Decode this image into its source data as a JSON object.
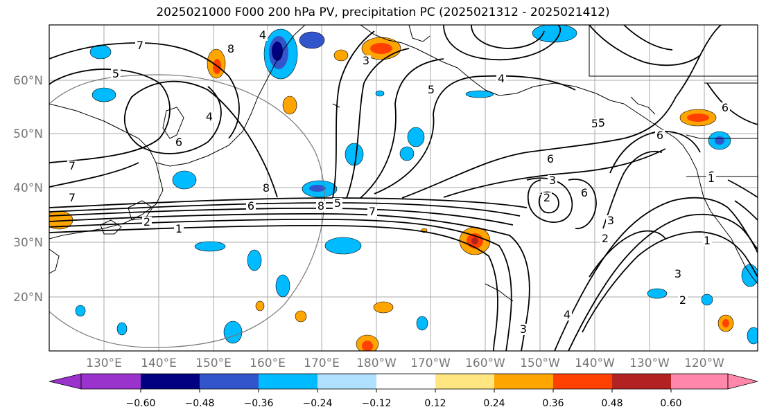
{
  "title": "2025021000 F000 200 hPa PV, precipitation PC (2025021312 - 2025021412)",
  "map": {
    "lat_ticks": [
      "60°N",
      "50°N",
      "40°N",
      "30°N",
      "20°N"
    ],
    "lon_ticks": [
      "130°E",
      "140°E",
      "150°E",
      "160°E",
      "170°E",
      "180°W",
      "170°W",
      "160°W",
      "150°W",
      "140°W",
      "130°W",
      "120°W"
    ],
    "contour_labels": [
      "7",
      "5",
      "4",
      "6",
      "7",
      "7",
      "8",
      "6",
      "2",
      "1",
      "8",
      "4",
      "5",
      "3",
      "4",
      "6",
      "5",
      "6",
      "8",
      "3",
      "2",
      "6",
      "3",
      "2",
      "3",
      "1",
      "2",
      "4",
      "3",
      "6",
      "5",
      "7",
      "8",
      "6",
      "5",
      "1"
    ]
  },
  "colorbar": {
    "tick_labels": [
      "−0.60",
      "−0.48",
      "−0.36",
      "−0.24",
      "−0.12",
      "0.12",
      "0.24",
      "0.36",
      "0.48",
      "0.60"
    ],
    "colors": [
      "#9933cc",
      "#000080",
      "#3355cc",
      "#00bbff",
      "#b0e0ff",
      "#ffffff",
      "#ffe680",
      "#ffa500",
      "#ff4000",
      "#b22222",
      "#ff88aa"
    ]
  }
}
